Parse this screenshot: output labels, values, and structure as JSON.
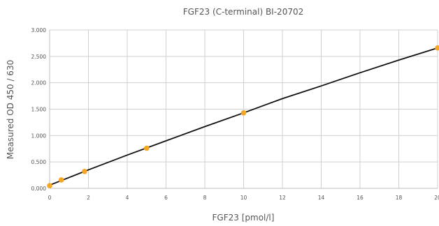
{
  "chart_data": {
    "type": "scatter",
    "title": "FGF23 (C-terminal) BI-20702",
    "xlabel": "FGF23 [pmol/l]",
    "ylabel": "Measured OD 450 / 630",
    "xlim": [
      0,
      20
    ],
    "ylim": [
      0,
      3
    ],
    "x_ticks": [
      "0",
      "2",
      "4",
      "6",
      "8",
      "10",
      "12",
      "14",
      "16",
      "18",
      "20"
    ],
    "y_ticks": [
      "0.000",
      "0.500",
      "1.000",
      "1.500",
      "2.000",
      "2.500",
      "3.000"
    ],
    "grid": true,
    "legend": "none",
    "series": [
      {
        "points": [
          {
            "x": 0,
            "y": 0.05
          },
          {
            "x": 0.6,
            "y": 0.16
          },
          {
            "x": 1.8,
            "y": 0.32
          },
          {
            "x": 5,
            "y": 0.76
          },
          {
            "x": 10,
            "y": 1.43
          },
          {
            "x": 20,
            "y": 2.66
          }
        ],
        "marker_color": "#f5a623"
      }
    ],
    "fit_line": {
      "x": [
        0,
        2,
        4,
        6,
        8,
        10,
        12,
        14,
        16,
        18,
        20
      ],
      "y": [
        0.06,
        0.35,
        0.63,
        0.9,
        1.17,
        1.43,
        1.7,
        1.94,
        2.19,
        2.43,
        2.66
      ],
      "color": "#111111"
    }
  }
}
